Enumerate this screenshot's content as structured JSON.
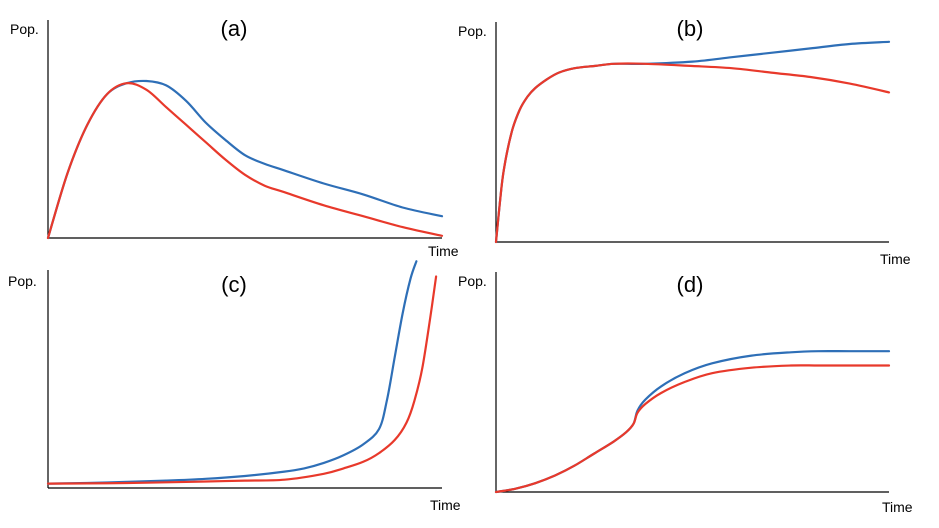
{
  "chart_data": [
    {
      "type": "line",
      "title": "(a)",
      "xlabel": "Time",
      "ylabel": "Pop.",
      "xlim": [
        0,
        100
      ],
      "ylim": [
        0,
        100
      ],
      "grid": false,
      "series": [
        {
          "color": "#2e6fb7",
          "x": [
            0,
            5,
            10,
            15,
            20,
            25,
            30,
            35,
            40,
            45,
            50,
            55,
            60,
            70,
            80,
            90,
            100
          ],
          "y": [
            0,
            30,
            52,
            66,
            71,
            72,
            70,
            63,
            53,
            45,
            38,
            34,
            31,
            25,
            20,
            14,
            10
          ]
        },
        {
          "color": "#e8392b",
          "x": [
            0,
            5,
            10,
            15,
            20,
            25,
            30,
            35,
            40,
            45,
            50,
            55,
            60,
            70,
            80,
            90,
            100
          ],
          "y": [
            0,
            30,
            52,
            66,
            71,
            68,
            60,
            52,
            44,
            36,
            29,
            24,
            21,
            15,
            10,
            5,
            1
          ]
        }
      ]
    },
    {
      "type": "line",
      "title": "(b)",
      "xlabel": "Time",
      "ylabel": "Pop.",
      "xlim": [
        0,
        100
      ],
      "ylim": [
        0,
        100
      ],
      "grid": false,
      "series": [
        {
          "color": "#2e6fb7",
          "x": [
            0,
            1,
            2,
            4,
            6,
            8,
            10,
            13,
            16,
            20,
            25,
            30,
            38,
            50,
            60,
            70,
            80,
            90,
            100
          ],
          "y": [
            0,
            18,
            33,
            50,
            60,
            66,
            70,
            74,
            77,
            79,
            80,
            81,
            81,
            82,
            84,
            86,
            88,
            90,
            91
          ]
        },
        {
          "color": "#e8392b",
          "x": [
            0,
            1,
            2,
            4,
            6,
            8,
            10,
            13,
            16,
            20,
            25,
            30,
            38,
            50,
            60,
            70,
            80,
            90,
            100
          ],
          "y": [
            0,
            18,
            33,
            50,
            60,
            66,
            70,
            74,
            77,
            79,
            80,
            81,
            81,
            80,
            79,
            77,
            75,
            72,
            68
          ]
        }
      ]
    },
    {
      "type": "line",
      "title": "(c)",
      "xlabel": "Time",
      "ylabel": "Pop.",
      "xlim": [
        0,
        100
      ],
      "ylim": [
        0,
        100
      ],
      "grid": false,
      "series": [
        {
          "color": "#2e6fb7",
          "x": [
            0,
            10,
            20,
            30,
            40,
            50,
            60,
            65,
            70,
            75,
            80,
            84,
            86,
            88,
            90,
            92,
            93.5
          ],
          "y": [
            2,
            2.3,
            2.8,
            3.4,
            4.2,
            5.5,
            7.5,
            9,
            11.5,
            15,
            20,
            27,
            40,
            60,
            80,
            96,
            104
          ]
        },
        {
          "color": "#e8392b",
          "x": [
            0,
            10,
            20,
            30,
            40,
            50,
            60,
            70,
            75,
            80,
            84,
            88,
            91,
            93,
            95,
            97,
            98.5
          ],
          "y": [
            2,
            2.1,
            2.3,
            2.6,
            3,
            3.4,
            3.8,
            6.5,
            9,
            12,
            16,
            22,
            30,
            40,
            55,
            78,
            97
          ]
        }
      ]
    },
    {
      "type": "line",
      "title": "(d)",
      "xlabel": "Time",
      "ylabel": "Pop.",
      "xlim": [
        0,
        100
      ],
      "ylim": [
        0,
        100
      ],
      "grid": false,
      "series": [
        {
          "color": "#2e6fb7",
          "x": [
            0,
            5,
            10,
            15,
            20,
            25,
            30,
            33,
            35,
            36,
            38,
            42,
            48,
            55,
            65,
            75,
            82,
            90,
            100
          ],
          "y": [
            0,
            1.5,
            4,
            7.5,
            12,
            17.5,
            23,
            27,
            31,
            37,
            42,
            48,
            54,
            58.5,
            62,
            63.5,
            64,
            64,
            64
          ]
        },
        {
          "color": "#e8392b",
          "x": [
            0,
            5,
            10,
            15,
            20,
            25,
            30,
            33,
            35,
            36,
            38,
            42,
            48,
            55,
            65,
            75,
            82,
            90,
            100
          ],
          "y": [
            0,
            1.5,
            4,
            7.5,
            12,
            17.5,
            23,
            27,
            31,
            36,
            40,
            45,
            50,
            54,
            56.5,
            57.5,
            57.5,
            57.5,
            57.5
          ]
        }
      ]
    }
  ]
}
